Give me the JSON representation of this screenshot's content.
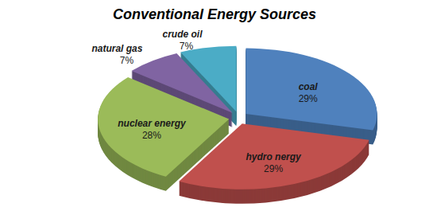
{
  "chart_data": {
    "type": "pie",
    "title": "Conventional Energy Sources",
    "categories": [
      "coal",
      "hydro nergy",
      "nuclear energy",
      "natural gas",
      "crude oil"
    ],
    "values": [
      29,
      29,
      28,
      7,
      7
    ],
    "value_labels": [
      "29%",
      "29%",
      "28%",
      "7%",
      "7%"
    ],
    "colors": [
      "#4f81bd",
      "#c0504d",
      "#9bbb59",
      "#8064a2",
      "#4bacc6"
    ],
    "data_labels": true
  }
}
